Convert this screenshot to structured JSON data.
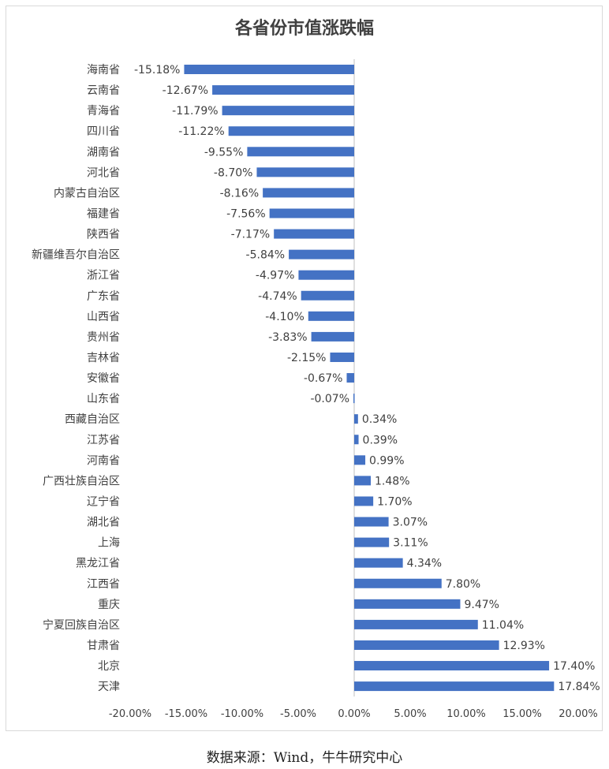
{
  "chart_data": {
    "type": "bar",
    "orientation": "horizontal",
    "title": "各省份市值涨跌幅",
    "categories": [
      "海南省",
      "云南省",
      "青海省",
      "四川省",
      "湖南省",
      "河北省",
      "内蒙古自治区",
      "福建省",
      "陕西省",
      "新疆维吾尔自治区",
      "浙江省",
      "广东省",
      "山西省",
      "贵州省",
      "吉林省",
      "安徽省",
      "山东省",
      "西藏自治区",
      "江苏省",
      "河南省",
      "广西壮族自治区",
      "辽宁省",
      "湖北省",
      "上海",
      "黑龙江省",
      "江西省",
      "重庆",
      "宁夏回族自治区",
      "甘肃省",
      "北京",
      "天津"
    ],
    "values": [
      -15.18,
      -12.67,
      -11.79,
      -11.22,
      -9.55,
      -8.7,
      -8.16,
      -7.56,
      -7.17,
      -5.84,
      -4.97,
      -4.74,
      -4.1,
      -3.83,
      -2.15,
      -0.67,
      -0.07,
      0.34,
      0.39,
      0.99,
      1.48,
      1.7,
      3.07,
      3.11,
      4.34,
      7.8,
      9.47,
      11.04,
      12.93,
      17.4,
      17.84
    ],
    "data_labels": [
      "-15.18%",
      "-12.67%",
      "-11.79%",
      "-11.22%",
      "-9.55%",
      "-8.70%",
      "-8.16%",
      "-7.56%",
      "-7.17%",
      "-5.84%",
      "-4.97%",
      "-4.74%",
      "-4.10%",
      "-3.83%",
      "-2.15%",
      "-0.67%",
      "-0.07%",
      "0.34%",
      "0.39%",
      "0.99%",
      "1.48%",
      "1.70%",
      "3.07%",
      "3.11%",
      "4.34%",
      "7.80%",
      "9.47%",
      "11.04%",
      "12.93%",
      "17.40%",
      "17.84%"
    ],
    "xlim": [
      -20,
      20
    ],
    "x_ticks": [
      -20,
      -15,
      -10,
      -5,
      0,
      5,
      10,
      15,
      20
    ],
    "x_tick_labels": [
      "-20.00%",
      "-15.00%",
      "-10.00%",
      "-5.00%",
      "0.00%",
      "5.00%",
      "10.00%",
      "15.00%",
      "20.00%"
    ],
    "xlabel": "",
    "ylabel": "",
    "grid": false,
    "legend": "none",
    "bar_color": "#4472c4"
  },
  "footer": {
    "source": "数据来源：Wind，牛牛研究中心"
  }
}
